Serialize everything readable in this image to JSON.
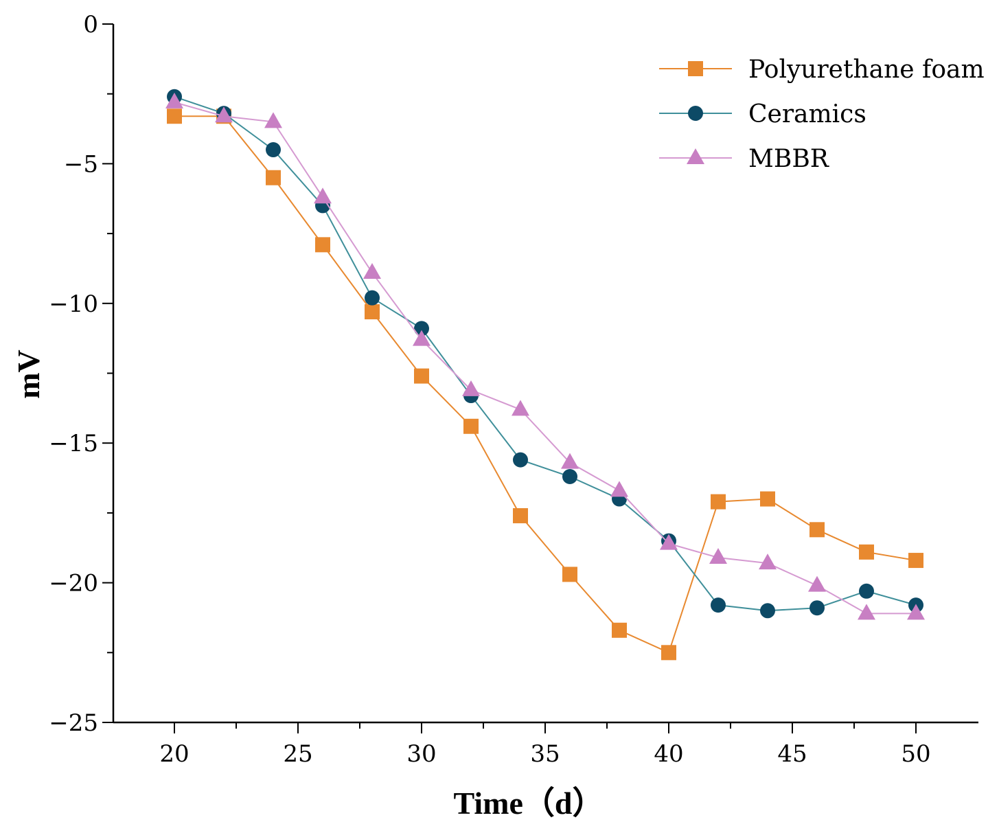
{
  "chart_data": {
    "type": "line",
    "title": "",
    "xlabel": "Time（d）",
    "ylabel": "mV",
    "xlim": [
      17.5,
      52.5
    ],
    "ylim": [
      -25,
      0
    ],
    "xticks": [
      20,
      25,
      30,
      35,
      40,
      45,
      50
    ],
    "yticks": [
      0,
      -5,
      -10,
      -15,
      -20,
      -25
    ],
    "xtick_labels": [
      "20",
      "25",
      "30",
      "35",
      "40",
      "45",
      "50"
    ],
    "ytick_labels": [
      "0",
      "−5",
      "−10",
      "−15",
      "−20",
      "−25"
    ],
    "x": [
      20,
      22,
      24,
      26,
      28,
      30,
      32,
      34,
      36,
      38,
      40,
      42,
      44,
      46,
      48,
      50
    ],
    "legend_position": "top-right",
    "series": [
      {
        "name": "Polyurethane foam",
        "color": "#e8892f",
        "line_color": "#e8892f",
        "marker": "square",
        "values": [
          -3.3,
          -3.3,
          -5.5,
          -7.9,
          -10.3,
          -12.6,
          -14.4,
          -17.6,
          -19.7,
          -21.7,
          -22.5,
          -17.1,
          -17.0,
          -18.1,
          -18.9,
          -19.2
        ]
      },
      {
        "name": "Ceramics",
        "color": "#0d4a66",
        "line_color": "#3f8f9a",
        "marker": "circle",
        "values": [
          -2.6,
          -3.2,
          -4.5,
          -6.5,
          -9.8,
          -10.9,
          -13.3,
          -15.6,
          -16.2,
          -17.0,
          -18.5,
          -20.8,
          -21.0,
          -20.9,
          -20.3,
          -20.8
        ]
      },
      {
        "name": "MBBR",
        "color": "#c87fc3",
        "line_color": "#d59ad1",
        "marker": "triangle",
        "values": [
          -2.8,
          -3.3,
          -3.5,
          -6.2,
          -8.9,
          -11.3,
          -13.1,
          -13.8,
          -15.7,
          -16.7,
          -18.6,
          -19.1,
          -19.3,
          -20.1,
          -21.1,
          -21.1
        ]
      }
    ]
  }
}
